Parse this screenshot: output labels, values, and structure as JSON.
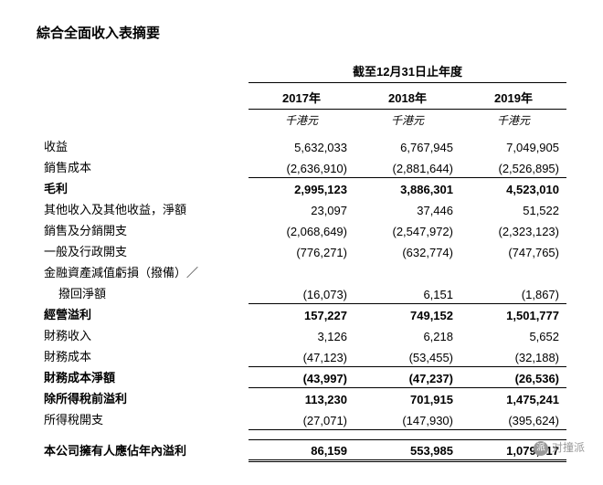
{
  "title": "綜合全面收入表摘要",
  "period_header": "截至12月31日止年度",
  "years": [
    "2017年",
    "2018年",
    "2019年"
  ],
  "unit": "千港元",
  "rows": [
    {
      "label": "收益",
      "vals": [
        "5,632,033",
        "6,767,945",
        "7,049,905"
      ],
      "bold": false,
      "indent": false
    },
    {
      "label": "銷售成本",
      "vals": [
        "(2,636,910)",
        "(2,881,644)",
        "(2,526,895)"
      ],
      "bold": false,
      "indent": false,
      "underline_after": true
    },
    {
      "label": "毛利",
      "vals": [
        "2,995,123",
        "3,886,301",
        "4,523,010"
      ],
      "bold": true,
      "indent": false,
      "subtotal": true
    },
    {
      "label": "其他收入及其他收益，淨額",
      "vals": [
        "23,097",
        "37,446",
        "51,522"
      ],
      "bold": false,
      "indent": false
    },
    {
      "label": "銷售及分銷開支",
      "vals": [
        "(2,068,649)",
        "(2,547,972)",
        "(2,323,123)"
      ],
      "bold": false,
      "indent": false
    },
    {
      "label": "一般及行政開支",
      "vals": [
        "(776,271)",
        "(632,774)",
        "(747,765)"
      ],
      "bold": false,
      "indent": false
    },
    {
      "label": "金融資產減值虧損（撥備）／",
      "vals": [
        "",
        "",
        ""
      ],
      "bold": false,
      "indent": false
    },
    {
      "label": "撥回淨額",
      "vals": [
        "(16,073)",
        "6,151",
        "(1,867)"
      ],
      "bold": false,
      "indent": true,
      "underline_after": true
    },
    {
      "label": "經營溢利",
      "vals": [
        "157,227",
        "749,152",
        "1,501,777"
      ],
      "bold": true,
      "indent": false,
      "subtotal": true
    },
    {
      "label": "財務收入",
      "vals": [
        "3,126",
        "6,218",
        "5,652"
      ],
      "bold": false,
      "indent": false
    },
    {
      "label": "財務成本",
      "vals": [
        "(47,123)",
        "(53,455)",
        "(32,188)"
      ],
      "bold": false,
      "indent": false,
      "underline_after": true
    },
    {
      "label": "財務成本淨額",
      "vals": [
        "(43,997)",
        "(47,237)",
        "(26,536)"
      ],
      "bold": true,
      "indent": false,
      "subtotal": true,
      "underline_after": true
    },
    {
      "label": "除所得稅前溢利",
      "vals": [
        "113,230",
        "701,915",
        "1,475,241"
      ],
      "bold": true,
      "indent": false,
      "subtotal": true
    },
    {
      "label": "所得稅開支",
      "vals": [
        "(27,071)",
        "(147,930)",
        "(395,624)"
      ],
      "bold": false,
      "indent": false,
      "underline_after": true
    }
  ],
  "final": {
    "label": "本公司擁有人應佔年內溢利",
    "vals": [
      "86,159",
      "553,985",
      "1,079,617"
    ]
  },
  "watermark": "对撞派"
}
